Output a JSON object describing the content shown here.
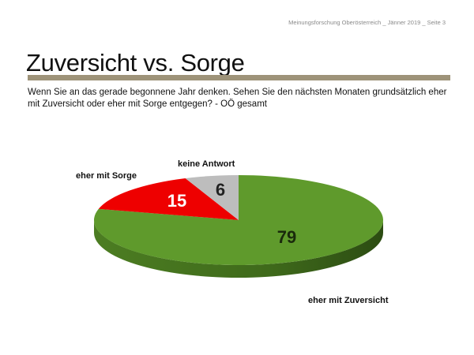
{
  "header": {
    "source_line": "Meinungsforschung Oberösterreich _ Jänner 2019 _ Seite 3"
  },
  "slide": {
    "title": "Zuversicht vs. Sorge",
    "question": "Wenn Sie an das gerade begonnene Jahr denken. Sehen Sie den nächsten Monaten grundsätzlich eher mit Zuversicht oder eher mit Sorge entgegen? - OÖ gesamt"
  },
  "chart_data": {
    "type": "pie",
    "style": "3d",
    "start": "top, clockwise",
    "slices": [
      {
        "label": "eher mit Zuversicht",
        "value": 79,
        "color": "#5f9a2c",
        "value_color": "#1a2a0c"
      },
      {
        "label": "eher mit Sorge",
        "value": 15,
        "color": "#ee0000",
        "value_color": "#ffffff"
      },
      {
        "label": "keine Antwort",
        "value": 6,
        "color": "#bdbdbd",
        "value_color": "#222222"
      }
    ]
  }
}
